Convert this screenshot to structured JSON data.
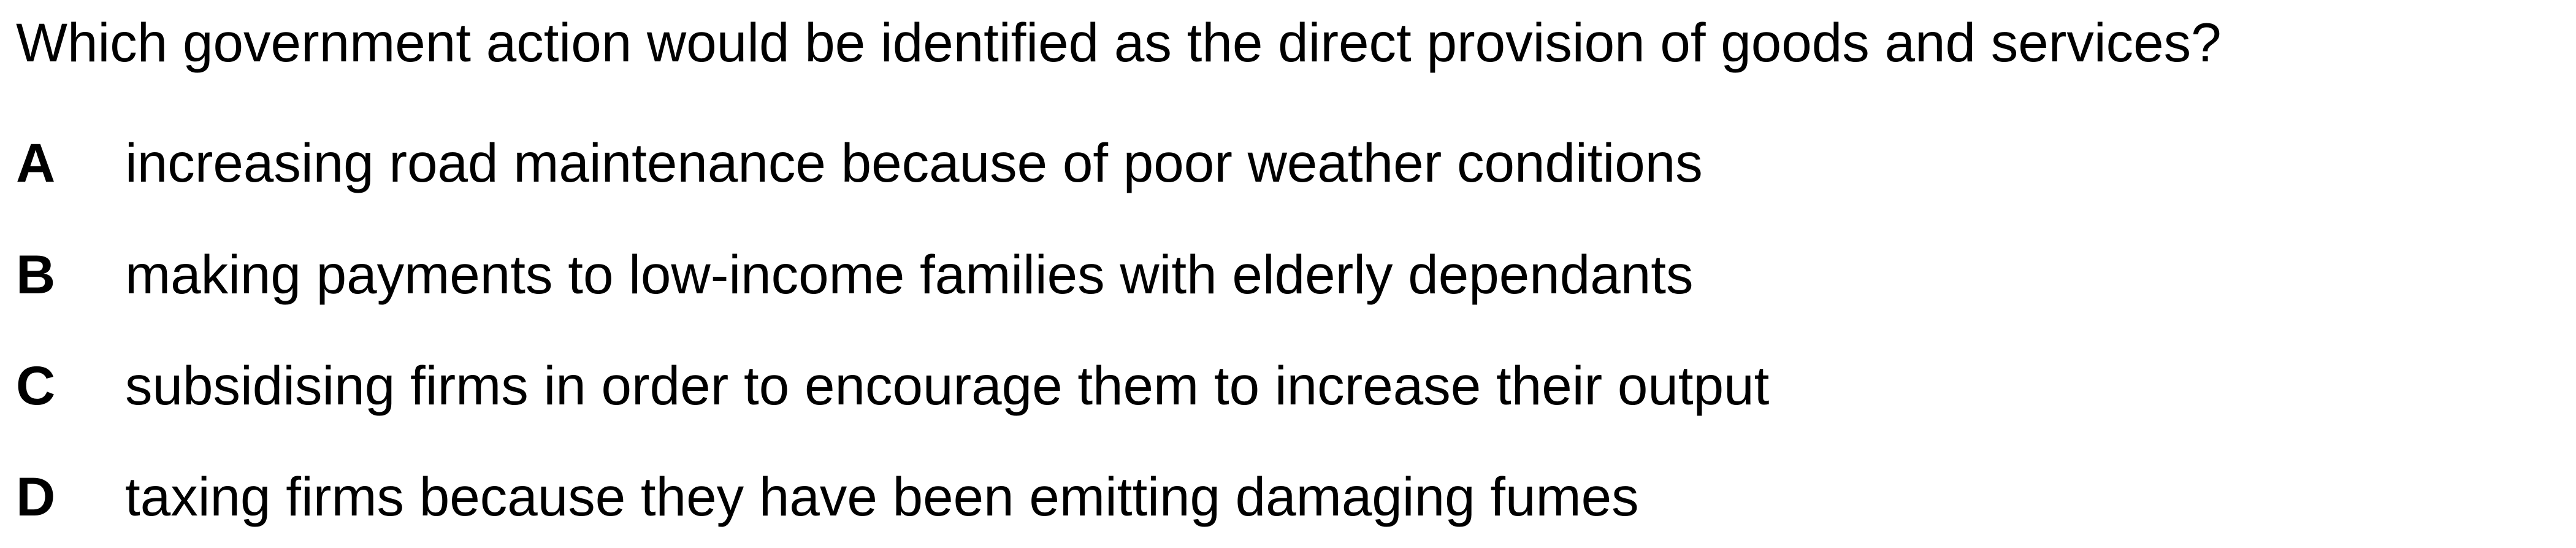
{
  "question": {
    "text": "Which government action would be identified as the direct provision of goods and services?"
  },
  "options": [
    {
      "letter": "A",
      "text": "increasing road maintenance because of poor weather conditions"
    },
    {
      "letter": "B",
      "text": "making payments to low-income families with elderly dependants"
    },
    {
      "letter": "C",
      "text": "subsidising firms in order to encourage them to increase their output"
    },
    {
      "letter": "D",
      "text": "taxing firms because they have been emitting damaging fumes"
    }
  ]
}
